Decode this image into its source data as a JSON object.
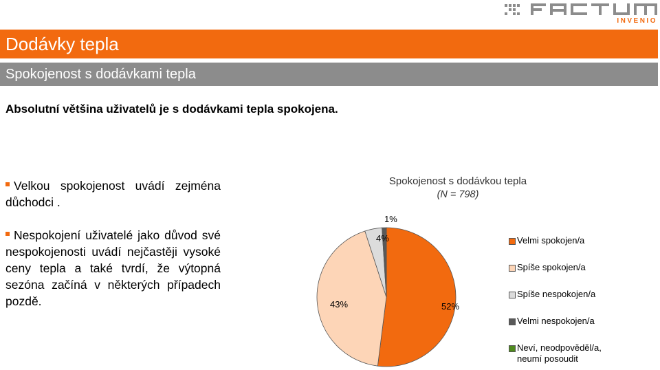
{
  "header": {
    "title": "Dodávky tepla",
    "subtitle": "Spokojenost s dodávkami tepla"
  },
  "headline": "Absolutní většina uživatelů je s dodávkami tepla spokojena.",
  "bullets": [
    {
      "text": "Velkou spokojenost uvádí zejména důchodci ."
    },
    {
      "text": "Nespokojení uživatelé jako důvod své nespokojenosti uvádí nejčastěji vysoké ceny tepla a také tvrdí, že výtopná sezóna začíná v některých případech pozdě."
    }
  ],
  "colors": {
    "accent": "#F26A0F",
    "sub_bar": "#8C8C8C"
  },
  "logo": {
    "icon": "factum-invenio-logo",
    "text_top": "FACTUM",
    "text_bottom": "INVENIO"
  },
  "chart_data": {
    "type": "pie",
    "title": "Spokojenost s dodávkou tepla",
    "subtitle": "(N = 798)",
    "categories": [
      "Velmi spokojen/a",
      "Spíše spokojen/a",
      "Spíše nespokojen/a",
      "Velmi nespokojen/a",
      "Neví, neodpověděl/a, neumí posoudit"
    ],
    "values": [
      52,
      43,
      4,
      1,
      0
    ],
    "labels": [
      "52%",
      "43%",
      "4%",
      "1%",
      ""
    ],
    "colors": [
      "#F26A0F",
      "#FDD5B7",
      "#DCDCDC",
      "#595959",
      "#4F8A1E"
    ],
    "legend_position": "right"
  }
}
